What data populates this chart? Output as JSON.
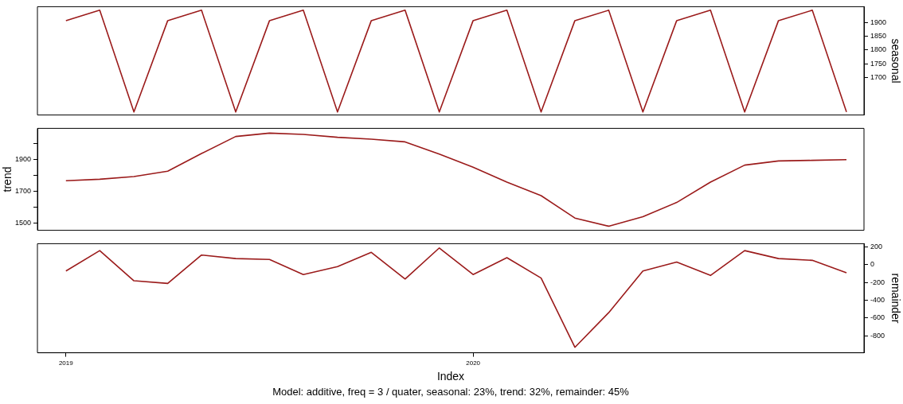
{
  "chart_data": [
    {
      "type": "line",
      "x": [
        2019,
        2019.083,
        2019.167,
        2019.25,
        2019.333,
        2019.417,
        2019.5,
        2019.583,
        2019.667,
        2019.75,
        2019.833,
        2019.917,
        2020,
        2020.083,
        2020.167,
        2020.25,
        2020.333,
        2020.417,
        2020.5,
        2020.583,
        2020.667,
        2020.75,
        2020.833,
        2020.917
      ],
      "xlim": [
        2018.93,
        2020.96
      ],
      "y2label": "seasonal",
      "y2lim": [
        1562,
        1959
      ],
      "y2ticks": [
        1700,
        1750,
        1800,
        1850,
        1900
      ],
      "grid": false,
      "marker": "none",
      "tick_labels": "y",
      "series": [
        {
          "color": "#9b1b1b",
          "axis": "y2",
          "values": [
            1908,
            1946,
            1573,
            1908,
            1946,
            1573,
            1908,
            1946,
            1573,
            1908,
            1946,
            1573,
            1908,
            1946,
            1573,
            1908,
            1946,
            1573,
            1908,
            1946,
            1573,
            1908,
            1946,
            1573
          ]
        }
      ]
    },
    {
      "type": "line",
      "x": [
        2019,
        2019.083,
        2019.167,
        2019.25,
        2019.333,
        2019.417,
        2019.5,
        2019.583,
        2019.667,
        2019.75,
        2019.833,
        2019.917,
        2020,
        2020.083,
        2020.167,
        2020.25,
        2020.333,
        2020.417,
        2020.5,
        2020.583,
        2020.667,
        2020.75,
        2020.833,
        2020.917
      ],
      "xlim": [
        2018.93,
        2020.96
      ],
      "ylabel": "trend",
      "ylim": [
        1453,
        2094
      ],
      "yticks": [
        1500,
        {
          "value": 1600,
          "label": null
        },
        1700,
        {
          "value": 1800,
          "label": null
        },
        1900,
        {
          "value": 2000,
          "label": null
        }
      ],
      "grid": false,
      "marker": "none",
      "tick_labels": "y",
      "series": [
        {
          "color": "#9b1b1b",
          "values": [
            1765,
            1774,
            1791,
            1825,
            1936,
            2043,
            2064,
            2056,
            2038,
            2026,
            2009,
            1932,
            1850,
            1756,
            1671,
            1530,
            1479,
            1538,
            1628,
            1756,
            1863,
            1889,
            1893,
            1897
          ]
        }
      ]
    },
    {
      "type": "line",
      "x": [
        2019,
        2019.083,
        2019.167,
        2019.25,
        2019.333,
        2019.417,
        2019.5,
        2019.583,
        2019.667,
        2019.75,
        2019.833,
        2019.917,
        2020,
        2020.083,
        2020.167,
        2020.25,
        2020.333,
        2020.417,
        2020.5,
        2020.583,
        2020.667,
        2020.75,
        2020.833,
        2020.917
      ],
      "xlim": [
        2018.93,
        2020.96
      ],
      "xticks": [
        2019,
        2020
      ],
      "xlabel": "Index",
      "y2label": "remainder",
      "y2lim": [
        -992,
        238
      ],
      "y2ticks": [
        200,
        0,
        -200,
        -400,
        -600,
        -800
      ],
      "grid": false,
      "marker": "none",
      "annotations": [
        "Model: additive, freq = 3 / quater, seasonal: 23%, trend: 32%, remainder: 45%"
      ],
      "series": [
        {
          "color": "#9b1b1b",
          "axis": "y2",
          "values": [
            -70,
            160,
            -180,
            -210,
            110,
            70,
            60,
            -110,
            -20,
            140,
            -160,
            190,
            -110,
            80,
            -150,
            -930,
            -540,
            -70,
            30,
            -120,
            160,
            70,
            50,
            -90
          ]
        }
      ]
    }
  ]
}
